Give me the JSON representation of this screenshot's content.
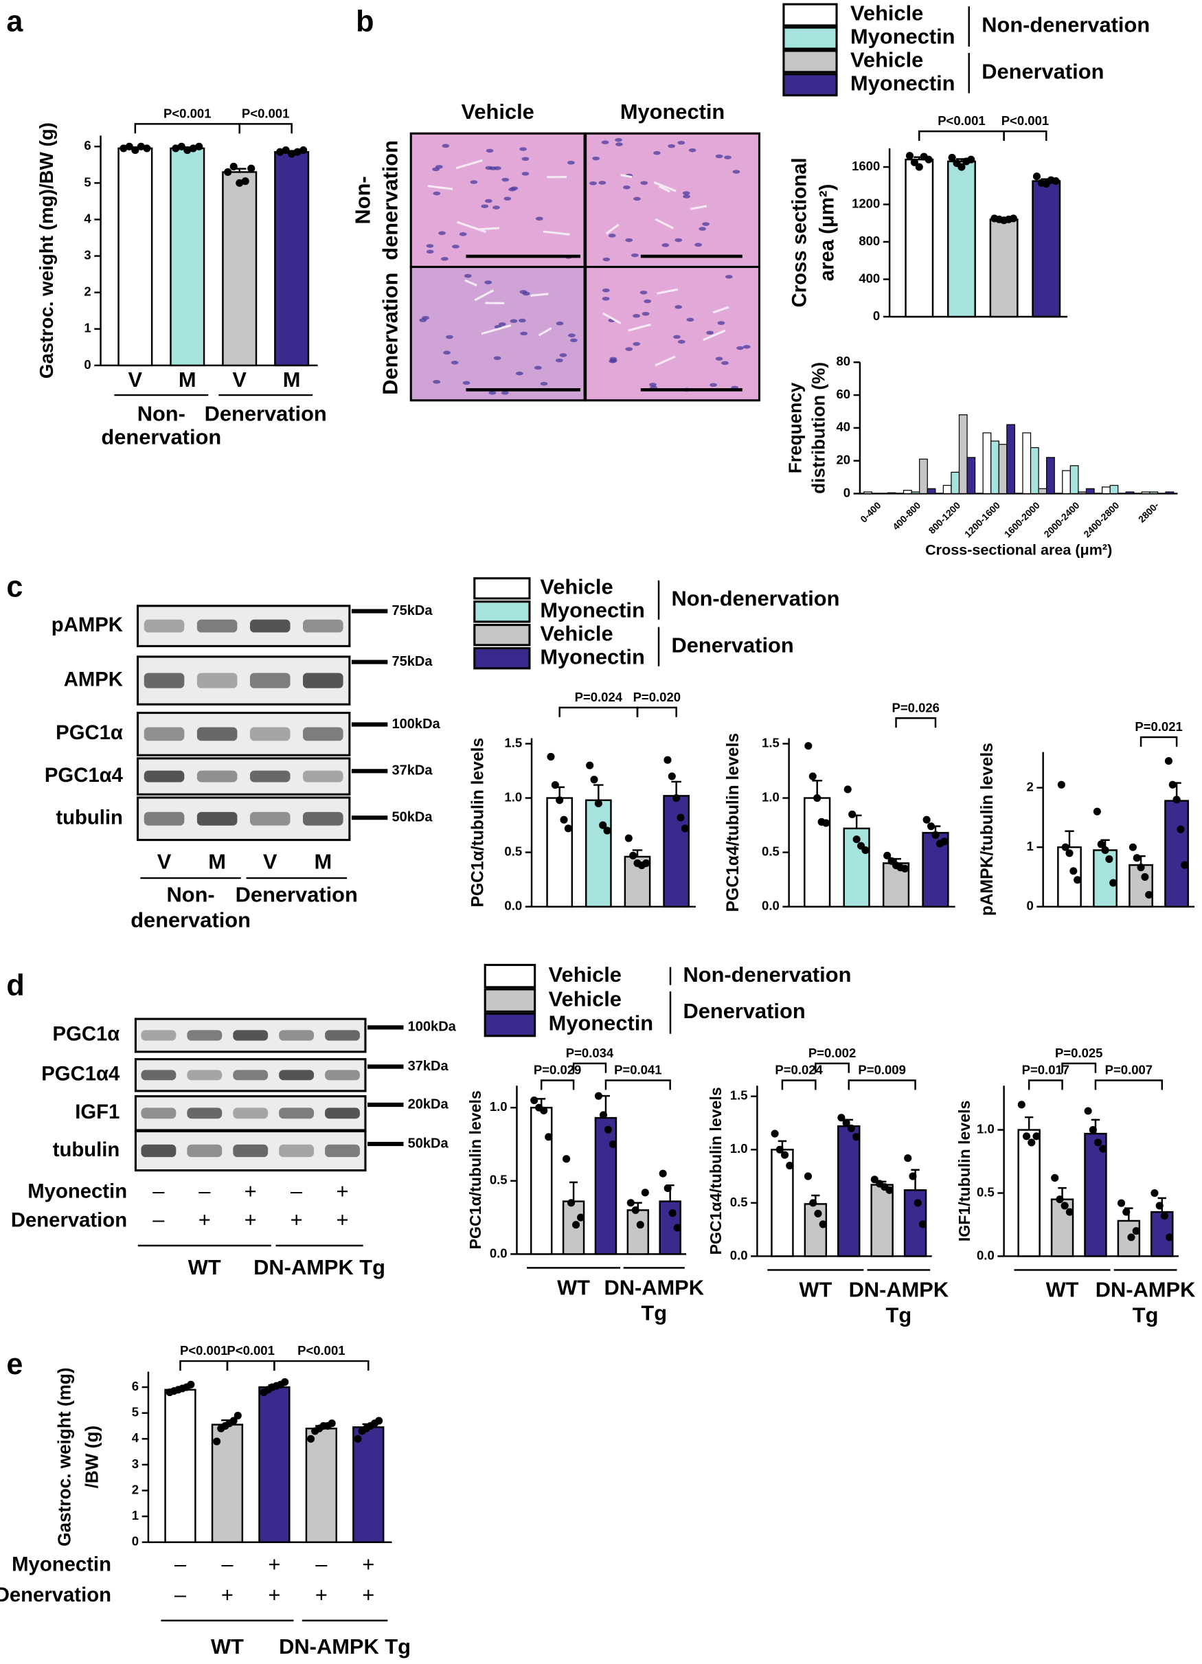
{
  "panel_labels": [
    "a",
    "b",
    "c",
    "d",
    "e"
  ],
  "legends": [
    {
      "entries": [
        {
          "name": "Vehicle",
          "color": "#ffffff"
        },
        {
          "name": "Myonectin",
          "color": "#a6e3de"
        },
        {
          "name": "Vehicle",
          "color": "#c6c6c6"
        },
        {
          "name": "Myonectin",
          "color": "#3b2a8e"
        }
      ],
      "groups": [
        {
          "label": "Non-denervation",
          "entries": [
            0,
            1
          ]
        },
        {
          "label": "Denervation",
          "entries": [
            2,
            3
          ]
        }
      ]
    },
    {
      "entries": [
        {
          "name": "Vehicle",
          "color": "#ffffff"
        },
        {
          "name": "Myonectin",
          "color": "#a6e3de"
        },
        {
          "name": "Vehicle",
          "color": "#c6c6c6"
        },
        {
          "name": "Myonectin",
          "color": "#3b2a8e"
        }
      ],
      "groups": [
        {
          "label": "Non-denervation",
          "entries": [
            0,
            1
          ]
        },
        {
          "label": "Denervation",
          "entries": [
            2,
            3
          ]
        }
      ]
    },
    {
      "entries": [
        {
          "name": "Vehicle",
          "color": "#ffffff"
        },
        {
          "name": "Vehicle",
          "color": "#c6c6c6"
        },
        {
          "name": "Myonectin",
          "color": "#3b2a8e"
        }
      ],
      "groups": [
        {
          "label": "Non-denervation",
          "entries": [
            0,
            0
          ]
        },
        {
          "label": "Denervation",
          "entries": [
            1,
            2
          ]
        }
      ]
    }
  ],
  "histology": {
    "columns": [
      "Vehicle",
      "Myonectin"
    ],
    "rows": [
      [
        "Non-",
        "denervation"
      ],
      [
        "Denervation"
      ]
    ]
  },
  "blots": [
    {
      "bands": [
        {
          "label": "pAMPK",
          "size": "75kDa"
        },
        {
          "label": "AMPK",
          "size": "75kDa"
        },
        {
          "label": "PGC1α",
          "size": "100kDa"
        },
        {
          "label": "PGC1α4",
          "size": "37kDa"
        },
        {
          "label": "tubulin",
          "size": "50kDa"
        }
      ],
      "lanes": [
        "V",
        "M",
        "V",
        "M"
      ],
      "groups": [
        {
          "lines": [
            "Non-",
            "denervation"
          ],
          "lanes": [
            0,
            1
          ]
        },
        {
          "lines": [
            "Denervation"
          ],
          "lanes": [
            2,
            3
          ]
        }
      ]
    },
    {
      "bands": [
        {
          "label": "PGC1α",
          "size": "100kDa"
        },
        {
          "label": "PGC1α4",
          "size": "37kDa"
        },
        {
          "label": "IGF1",
          "size": "20kDa"
        },
        {
          "label": "tubulin",
          "size": "50kDa"
        }
      ],
      "conditions": [
        {
          "label": "Myonectin",
          "marks": [
            "–",
            "–",
            "+",
            "–",
            "+"
          ]
        },
        {
          "label": "Denervation",
          "marks": [
            "–",
            "+",
            "+",
            "+",
            "+"
          ]
        }
      ],
      "groups": [
        {
          "lines": [
            "WT"
          ],
          "lanes": [
            0,
            2
          ]
        },
        {
          "lines": [
            "DN-AMPK Tg"
          ],
          "lanes": [
            3,
            4
          ]
        }
      ]
    }
  ],
  "chart_data": [
    {
      "type": "bar",
      "ylabel": [
        "Gastroc. weight (mg)/BW (g)"
      ],
      "ylim": [
        0,
        6.3
      ],
      "yticks": [
        0,
        1,
        2,
        3,
        4,
        5,
        6
      ],
      "categories": [
        "V",
        "M",
        "V",
        "M"
      ],
      "colors": [
        "#ffffff",
        "#a6e3de",
        "#c6c6c6",
        "#3b2a8e"
      ],
      "values": [
        5.95,
        5.95,
        5.3,
        5.85
      ],
      "errors": [
        0.03,
        0.03,
        0.09,
        0.03
      ],
      "points": [
        [
          5.95,
          6.0,
          5.9,
          6.0,
          5.95
        ],
        [
          5.95,
          6.0,
          5.9,
          5.95,
          6.0
        ],
        [
          5.3,
          5.45,
          5.0,
          5.05,
          5.4
        ],
        [
          5.85,
          5.9,
          5.8,
          5.85,
          5.9
        ]
      ],
      "comparisons": [
        {
          "bars": [
            0,
            2
          ],
          "label": "P<0.001"
        },
        {
          "bars": [
            2,
            3
          ],
          "label": "P<0.001"
        }
      ],
      "groups": [
        {
          "lines": [
            "Non-",
            "denervation"
          ],
          "bars": [
            0,
            1
          ]
        },
        {
          "lines": [
            "Denervation"
          ],
          "bars": [
            2,
            3
          ]
        }
      ]
    },
    {
      "type": "bar",
      "ylabel": [
        "Cross sectional",
        "area (μm²)"
      ],
      "ylim": [
        0,
        1800
      ],
      "yticks": [
        0,
        400,
        800,
        1200,
        1600
      ],
      "colors": [
        "#ffffff",
        "#a6e3de",
        "#c6c6c6",
        "#3b2a8e"
      ],
      "values": [
        1680,
        1660,
        1040,
        1450
      ],
      "errors": [
        25,
        25,
        8,
        20
      ],
      "points": [
        [
          1720,
          1650,
          1600,
          1710,
          1680
        ],
        [
          1700,
          1640,
          1600,
          1660,
          1680
        ],
        [
          1050,
          1040,
          1030,
          1040,
          1050
        ],
        [
          1500,
          1430,
          1420,
          1460,
          1450
        ]
      ],
      "comparisons": [
        {
          "bars": [
            0,
            2
          ],
          "label": "P<0.001"
        },
        {
          "bars": [
            2,
            3
          ],
          "label": "P<0.001"
        }
      ]
    },
    {
      "type": "grouped-bar",
      "ylabel": [
        "Frequency",
        "distribution (%)"
      ],
      "xlabel": "Cross-sectional area (μm²)",
      "ylim": [
        0,
        80
      ],
      "yticks": [
        0,
        20,
        40,
        60,
        80
      ],
      "categories": [
        "0-400",
        "400-800",
        "800-1200",
        "1200-1600",
        "1600-2000",
        "2000-2400",
        "2400-2800",
        "2800-"
      ],
      "series": [
        {
          "color": "#ffffff",
          "values": [
            1,
            2,
            5,
            37,
            37,
            14,
            4,
            1
          ]
        },
        {
          "color": "#a6e3de",
          "values": [
            0,
            1,
            13,
            32,
            28,
            17,
            5,
            1
          ]
        },
        {
          "color": "#c6c6c6",
          "values": [
            0,
            21,
            48,
            30,
            3,
            1,
            0,
            0
          ]
        },
        {
          "color": "#3b2a8e",
          "values": [
            0.5,
            3,
            22,
            42,
            22,
            3,
            1,
            1
          ]
        }
      ]
    },
    {
      "type": "bar",
      "ylabel": [
        "PGC1α/tubulin levels"
      ],
      "ylim": [
        0,
        1.55
      ],
      "yticks": [
        {
          "value": 0,
          "label": "0.0"
        },
        0.5,
        {
          "value": 1,
          "label": "1.0"
        },
        1.5
      ],
      "colors": [
        "#ffffff",
        "#a6e3de",
        "#c6c6c6",
        "#3b2a8e"
      ],
      "values": [
        1.0,
        0.98,
        0.46,
        1.02
      ],
      "errors": [
        0.1,
        0.14,
        0.06,
        0.13
      ],
      "points": [
        [
          1.38,
          1.12,
          0.98,
          0.8,
          0.72
        ],
        [
          1.3,
          1.17,
          0.95,
          0.75,
          0.7
        ],
        [
          0.63,
          0.47,
          0.4,
          0.38,
          0.4
        ],
        [
          1.35,
          1.2,
          1.0,
          0.82,
          0.72
        ]
      ],
      "comparisons": [
        {
          "bars": [
            0,
            2
          ],
          "label": "P=0.024"
        },
        {
          "bars": [
            2,
            3
          ],
          "label": "P=0.020"
        }
      ]
    },
    {
      "type": "bar",
      "ylabel": [
        "PGC1α4/tubulin levels"
      ],
      "ylim": [
        0,
        1.55
      ],
      "yticks": [
        {
          "value": 0,
          "label": "0.0"
        },
        0.5,
        {
          "value": 1,
          "label": "1.0"
        },
        1.5
      ],
      "colors": [
        "#ffffff",
        "#a6e3de",
        "#c6c6c6",
        "#3b2a8e"
      ],
      "values": [
        1.0,
        0.72,
        0.4,
        0.68
      ],
      "errors": [
        0.16,
        0.12,
        0.04,
        0.06
      ],
      "points": [
        [
          1.48,
          1.2,
          1.0,
          0.78,
          0.77
        ],
        [
          1.08,
          0.85,
          0.62,
          0.56,
          0.52
        ],
        [
          0.47,
          0.42,
          0.38,
          0.36,
          0.35
        ],
        [
          0.8,
          0.74,
          0.66,
          0.58,
          0.6
        ]
      ],
      "comparisons": [
        {
          "bars": [
            2,
            3
          ],
          "label": "P=0.026"
        }
      ]
    },
    {
      "type": "bar",
      "ylabel": [
        "pAMPK/tubulin levels"
      ],
      "ylim": [
        0,
        2.6
      ],
      "yticks": [
        0,
        1,
        2
      ],
      "colors": [
        "#ffffff",
        "#a6e3de",
        "#c6c6c6",
        "#3b2a8e"
      ],
      "values": [
        1.0,
        0.95,
        0.7,
        1.78
      ],
      "errors": [
        0.27,
        0.17,
        0.15,
        0.3
      ],
      "points": [
        [
          2.05,
          1.0,
          0.9,
          0.6,
          0.45
        ],
        [
          1.6,
          1.05,
          0.95,
          0.8,
          0.4
        ],
        [
          1.0,
          0.82,
          0.66,
          0.5,
          0.2
        ],
        [
          2.45,
          2.05,
          1.8,
          1.3,
          0.7
        ]
      ],
      "comparisons": [
        {
          "bars": [
            2,
            3
          ],
          "label": "P=0.021"
        }
      ]
    },
    {
      "type": "bar",
      "ylabel": [
        "PGC1α/tubulin levels"
      ],
      "ylim": [
        0,
        1.15
      ],
      "yticks": [
        {
          "value": 0,
          "label": "0.0"
        },
        0.5,
        {
          "value": 1,
          "label": "1.0"
        }
      ],
      "colors": [
        "#ffffff",
        "#c6c6c6",
        "#3b2a8e",
        "#c6c6c6",
        "#3b2a8e"
      ],
      "values": [
        1.0,
        0.36,
        0.93,
        0.3,
        0.36
      ],
      "errors": [
        0.06,
        0.13,
        0.15,
        0.05,
        0.11
      ],
      "points": [
        [
          1.05,
          1.0,
          0.98,
          0.8
        ],
        [
          0.65,
          0.35,
          0.2,
          0.25
        ],
        [
          1.08,
          0.95,
          0.85,
          0.75
        ],
        [
          0.35,
          0.3,
          0.2,
          0.42
        ],
        [
          0.55,
          0.45,
          0.28,
          0.18
        ]
      ],
      "comparisons": [
        {
          "bars": [
            0,
            1
          ],
          "label": "P=0.029"
        },
        {
          "bars": [
            1,
            2
          ],
          "label": "P=0.034"
        },
        {
          "bars": [
            2,
            4
          ],
          "label": "P=0.041"
        }
      ],
      "groups": [
        {
          "lines": [
            "WT"
          ],
          "bars": [
            0,
            2
          ]
        },
        {
          "lines": [
            "DN-AMPK",
            "Tg"
          ],
          "bars": [
            3,
            4
          ]
        }
      ]
    },
    {
      "type": "bar",
      "ylabel": [
        "PGC1α4/tubulin levels"
      ],
      "ylim": [
        0,
        1.6
      ],
      "yticks": [
        {
          "value": 0,
          "label": "0.0"
        },
        0.5,
        {
          "value": 1,
          "label": "1.0"
        },
        1.5
      ],
      "colors": [
        "#ffffff",
        "#c6c6c6",
        "#3b2a8e",
        "#c6c6c6",
        "#3b2a8e"
      ],
      "values": [
        1.0,
        0.49,
        1.22,
        0.67,
        0.62
      ],
      "errors": [
        0.08,
        0.08,
        0.06,
        0.03,
        0.19
      ],
      "points": [
        [
          1.15,
          1.0,
          0.95,
          0.85
        ],
        [
          0.75,
          0.5,
          0.4,
          0.3
        ],
        [
          1.3,
          1.25,
          1.2,
          1.12
        ],
        [
          0.72,
          0.68,
          0.65,
          0.62
        ],
        [
          0.92,
          0.75,
          0.5,
          0.3
        ]
      ],
      "comparisons": [
        {
          "bars": [
            0,
            1
          ],
          "label": "P=0.024"
        },
        {
          "bars": [
            1,
            2
          ],
          "label": "P=0.002"
        },
        {
          "bars": [
            2,
            4
          ],
          "label": "P=0.009"
        }
      ],
      "groups": [
        {
          "lines": [
            "WT"
          ],
          "bars": [
            0,
            2
          ]
        },
        {
          "lines": [
            "DN-AMPK",
            "Tg"
          ],
          "bars": [
            3,
            4
          ]
        }
      ]
    },
    {
      "type": "bar",
      "ylabel": [
        "IGF1/tubulin levels"
      ],
      "ylim": [
        0,
        1.35
      ],
      "yticks": [
        {
          "value": 0,
          "label": "0.0"
        },
        0.5,
        {
          "value": 1,
          "label": "1.0"
        }
      ],
      "colors": [
        "#ffffff",
        "#c6c6c6",
        "#3b2a8e",
        "#c6c6c6",
        "#3b2a8e"
      ],
      "values": [
        1.0,
        0.45,
        0.97,
        0.28,
        0.35
      ],
      "errors": [
        0.1,
        0.09,
        0.11,
        0.1,
        0.11
      ],
      "points": [
        [
          1.2,
          0.95,
          0.9,
          0.95
        ],
        [
          0.62,
          0.45,
          0.4,
          0.35
        ],
        [
          1.15,
          1.0,
          0.9,
          0.85
        ],
        [
          0.42,
          0.35,
          0.15,
          0.2
        ],
        [
          0.5,
          0.4,
          0.32,
          0.15
        ]
      ],
      "comparisons": [
        {
          "bars": [
            0,
            1
          ],
          "label": "P=0.017"
        },
        {
          "bars": [
            1,
            2
          ],
          "label": "P=0.025"
        },
        {
          "bars": [
            2,
            4
          ],
          "label": "P=0.007"
        }
      ],
      "groups": [
        {
          "lines": [
            "WT"
          ],
          "bars": [
            0,
            2
          ]
        },
        {
          "lines": [
            "DN-AMPK",
            "Tg"
          ],
          "bars": [
            3,
            4
          ]
        }
      ]
    },
    {
      "type": "bar",
      "ylabel": [
        "Gastroc. weight (mg)",
        "/BW (g)"
      ],
      "ylim": [
        0,
        6.6
      ],
      "yticks": [
        0,
        1,
        2,
        3,
        4,
        5,
        6
      ],
      "colors": [
        "#ffffff",
        "#c6c6c6",
        "#3b2a8e",
        "#c6c6c6",
        "#3b2a8e"
      ],
      "values": [
        5.9,
        4.55,
        6.0,
        4.4,
        4.45
      ],
      "errors": [
        0.05,
        0.17,
        0.08,
        0.1,
        0.12
      ],
      "points": [
        [
          5.8,
          5.85,
          5.9,
          5.95,
          6.0,
          6.1
        ],
        [
          3.9,
          4.4,
          4.5,
          4.6,
          4.7,
          4.9
        ],
        [
          5.8,
          5.9,
          6.0,
          6.05,
          6.1,
          6.2
        ],
        [
          4.0,
          4.3,
          4.4,
          4.5,
          4.5,
          4.6
        ],
        [
          4.0,
          4.3,
          4.4,
          4.5,
          4.6,
          4.7
        ]
      ],
      "comparisons": [
        {
          "bars": [
            0,
            1
          ],
          "label": "P<0.001"
        },
        {
          "bars": [
            1,
            2
          ],
          "label": "P<0.001"
        },
        {
          "bars": [
            2,
            4
          ],
          "label": "P<0.001"
        }
      ],
      "conditions": [
        {
          "label": "Myonectin",
          "marks": [
            "–",
            "–",
            "+",
            "–",
            "+"
          ]
        },
        {
          "label": "Denervation",
          "marks": [
            "–",
            "+",
            "+",
            "+",
            "+"
          ]
        }
      ],
      "groups": [
        {
          "lines": [
            "WT"
          ],
          "bars": [
            0,
            2
          ]
        },
        {
          "lines": [
            "DN-AMPK Tg"
          ],
          "bars": [
            3,
            4
          ]
        }
      ]
    }
  ]
}
